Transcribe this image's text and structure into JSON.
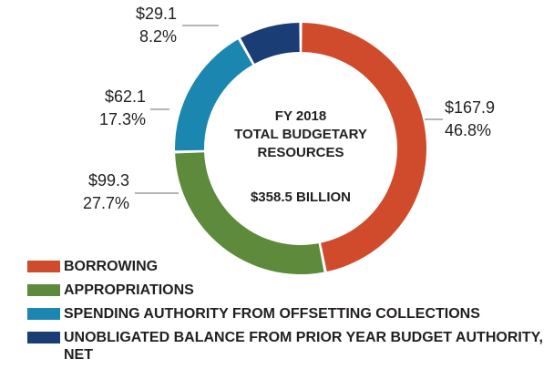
{
  "chart_data": {
    "type": "donut",
    "center_text": [
      "FY 2018",
      "TOTAL BUDGETARY",
      "RESOURCES"
    ],
    "total_label": "$358.5 BILLION",
    "categories": [
      "BORROWING",
      "APPROPRIATIONS",
      "SPENDING AUTHORITY FROM OFFSETTING COLLECTIONS",
      "UNOBLIGATED BALANCE FROM PRIOR YEAR BUDGET AUTHORITY, NET"
    ],
    "values": [
      167.9,
      99.3,
      62.1,
      29.1
    ],
    "value_labels": [
      "$167.9",
      "$99.3",
      "$62.1",
      "$29.1"
    ],
    "shares": [
      46.8,
      27.7,
      17.3,
      8.2
    ],
    "share_labels": [
      "46.8%",
      "27.7%",
      "17.3%",
      "8.2%"
    ],
    "colors": [
      "#cf4b2b",
      "#5d8a3b",
      "#1b87b1",
      "#193d74"
    ],
    "legend": "bottom-left"
  }
}
